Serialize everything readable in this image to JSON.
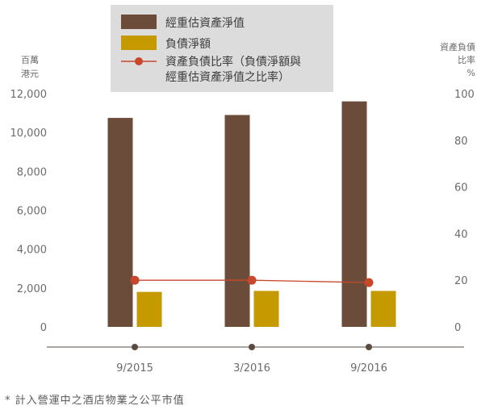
{
  "chart_data": {
    "type": "bar",
    "categories": [
      "9/2015",
      "3/2016",
      "9/2016"
    ],
    "series": [
      {
        "name": "經重估資產淨值",
        "kind": "bar",
        "axis": "left",
        "color": "#6b4c3b",
        "values": [
          10750,
          10900,
          11600
        ]
      },
      {
        "name": "負債淨額",
        "kind": "bar",
        "axis": "left",
        "color": "#c49a00",
        "values": [
          1800,
          1850,
          1850
        ]
      },
      {
        "name_lines": [
          "資產負債比率（負債淨額與",
          "經重估資產淨值之比率）"
        ],
        "kind": "line",
        "axis": "right",
        "color": "#c8472b",
        "values": [
          20,
          20,
          19
        ]
      }
    ],
    "ylim_left": [
      0,
      12000
    ],
    "ylim_right": [
      0,
      100
    ],
    "y_ticks_left": [
      "0",
      "2,000",
      "4,000",
      "6,000",
      "8,000",
      "10,000",
      "12,000"
    ],
    "y_ticks_right": [
      "0",
      "20",
      "40",
      "60",
      "80",
      "100"
    ],
    "ylabel_left_lines": [
      "百萬",
      "港元"
    ],
    "ylabel_right_lines": [
      "資產負債",
      "比率",
      "%"
    ],
    "legend_position": "top-center",
    "legend_bg": "#dcdcdc",
    "footnote": "* 計入營運中之酒店物業之公平市值"
  }
}
